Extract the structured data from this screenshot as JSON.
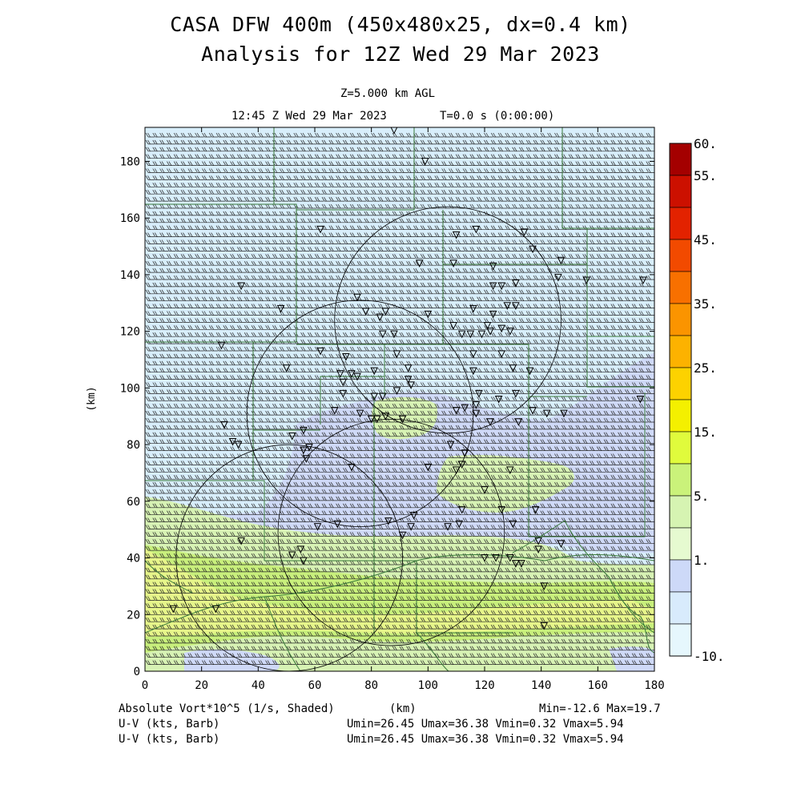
{
  "header": {
    "title": "CASA DFW 400m (450x480x25, dx=0.4 km)",
    "analysis": "Analysis for 12Z Wed 29 Mar 2023",
    "level": "Z=5.000 km AGL",
    "valid_time": "12:45 Z Wed 29 Mar 2023",
    "run_time": "T=0.0 s (0:00:00)"
  },
  "footer": {
    "field_label": "Absolute Vort*10^5 (1/s, Shaded)",
    "xunits": "(km)",
    "minmax": "Min=-12.6 Max=19.7",
    "barb1_label": "U-V (kts, Barb)",
    "barb1_stats": "Umin=26.45 Umax=36.38 Vmin=0.32 Vmax=5.94",
    "barb2_label": "U-V (kts, Barb)",
    "barb2_stats": "Umin=26.45 Umax=36.38 Vmin=0.32 Vmax=5.94"
  },
  "colors": {
    "frame": "#000000",
    "county_lines": "#3a7a3a",
    "barbs": "#222222"
  },
  "chart_data": {
    "type": "heatmap",
    "xlabel": "(km)",
    "ylabel": "(km)",
    "xlim": [
      0,
      180
    ],
    "ylim": [
      0,
      192
    ],
    "xticks": [
      "0",
      "20",
      "40",
      "60",
      "80",
      "100",
      "120",
      "140",
      "160",
      "180"
    ],
    "yticks": [
      "0",
      "20",
      "40",
      "60",
      "80",
      "100",
      "120",
      "140",
      "160",
      "180"
    ],
    "colorbar": {
      "labels": [
        "60.",
        "55.",
        "45.",
        "35.",
        "25.",
        "15.",
        "5.",
        "1.",
        "-10."
      ],
      "colors": [
        "#a40000",
        "#cc1000",
        "#e32200",
        "#f24a00",
        "#f87000",
        "#fb9400",
        "#fdb200",
        "#fdd200",
        "#f4f000",
        "#e0fb3c",
        "#caf27a",
        "#d6f4b2",
        "#e6fad0",
        "#cdd9f8",
        "#d8ebfc",
        "#e6f7fd"
      ]
    },
    "shading_regions": [
      {
        "level": "-10 to 1",
        "color": "#d8eefb"
      },
      {
        "level": "1 to 5",
        "color": "#cfd9f7"
      },
      {
        "level": "5 to 10",
        "color": "#d7f2b4"
      },
      {
        "level": "10 to 15",
        "color": "#c8ef7c"
      },
      {
        "level": "15 to 20",
        "color": "#e6f58a"
      }
    ],
    "wind": {
      "u_kts": [
        26.45,
        36.38
      ],
      "v_kts": [
        0.32,
        5.94
      ],
      "direction": "westerly"
    },
    "range_rings": [
      {
        "center_km": [
          51,
          40
        ],
        "radius_km": 40
      },
      {
        "center_km": [
          87,
          49
        ],
        "radius_km": 40
      },
      {
        "center_km": [
          76,
          91
        ],
        "radius_km": 40
      },
      {
        "center_km": [
          107,
          124
        ],
        "radius_km": 40
      }
    ],
    "station_markers_km": [
      [
        88,
        191
      ],
      [
        99,
        180
      ],
      [
        62,
        156
      ],
      [
        110,
        154
      ],
      [
        117,
        156
      ],
      [
        134,
        155
      ],
      [
        137,
        149
      ],
      [
        97,
        144
      ],
      [
        109,
        144
      ],
      [
        123,
        143
      ],
      [
        147,
        145
      ],
      [
        131,
        137
      ],
      [
        126,
        136
      ],
      [
        123,
        136
      ],
      [
        34,
        136
      ],
      [
        48,
        128
      ],
      [
        75,
        132
      ],
      [
        78,
        127
      ],
      [
        83,
        125
      ],
      [
        85,
        127
      ],
      [
        100,
        126
      ],
      [
        116,
        128
      ],
      [
        123,
        126
      ],
      [
        128,
        129
      ],
      [
        131,
        129
      ],
      [
        121,
        122
      ],
      [
        109,
        122
      ],
      [
        112,
        119
      ],
      [
        115,
        119
      ],
      [
        119,
        119
      ],
      [
        122,
        120
      ],
      [
        126,
        121
      ],
      [
        129,
        120
      ],
      [
        84,
        119
      ],
      [
        88,
        119
      ],
      [
        27,
        115
      ],
      [
        62,
        113
      ],
      [
        71,
        111
      ],
      [
        89,
        112
      ],
      [
        116,
        112
      ],
      [
        126,
        112
      ],
      [
        50,
        107
      ],
      [
        69,
        105
      ],
      [
        73,
        105
      ],
      [
        75,
        104
      ],
      [
        81,
        106
      ],
      [
        93,
        107
      ],
      [
        116,
        106
      ],
      [
        130,
        107
      ],
      [
        136,
        106
      ],
      [
        70,
        102
      ],
      [
        93,
        103
      ],
      [
        94,
        101
      ],
      [
        89,
        99
      ],
      [
        81,
        97
      ],
      [
        70,
        98
      ],
      [
        84,
        97
      ],
      [
        118,
        98
      ],
      [
        117,
        94
      ],
      [
        125,
        96
      ],
      [
        131,
        98
      ],
      [
        113,
        93
      ],
      [
        117,
        91
      ],
      [
        142,
        91
      ],
      [
        148,
        91
      ],
      [
        28,
        87
      ],
      [
        67,
        92
      ],
      [
        76,
        91
      ],
      [
        80,
        89
      ],
      [
        82,
        89
      ],
      [
        85,
        90
      ],
      [
        91,
        89
      ],
      [
        110,
        92
      ],
      [
        122,
        88
      ],
      [
        132,
        88
      ],
      [
        137,
        92
      ],
      [
        56,
        85
      ],
      [
        52,
        83
      ],
      [
        31,
        81
      ],
      [
        33,
        80
      ],
      [
        58,
        79
      ],
      [
        56,
        78
      ],
      [
        57,
        75
      ],
      [
        73,
        72
      ],
      [
        100,
        72
      ],
      [
        110,
        71
      ],
      [
        129,
        71
      ],
      [
        175,
        96
      ],
      [
        108,
        80
      ],
      [
        113,
        77
      ],
      [
        112,
        73
      ],
      [
        120,
        64
      ],
      [
        112,
        57
      ],
      [
        126,
        57
      ],
      [
        138,
        57
      ],
      [
        111,
        52
      ],
      [
        107,
        51
      ],
      [
        86,
        53
      ],
      [
        95,
        55
      ],
      [
        94,
        51
      ],
      [
        91,
        48
      ],
      [
        130,
        52
      ],
      [
        68,
        52
      ],
      [
        61,
        51
      ],
      [
        52,
        41
      ],
      [
        56,
        39
      ],
      [
        139,
        46
      ],
      [
        139,
        43
      ],
      [
        147,
        45
      ],
      [
        131,
        38
      ],
      [
        141,
        30
      ],
      [
        124,
        40
      ],
      [
        120,
        40
      ],
      [
        129,
        40
      ],
      [
        133,
        38
      ],
      [
        176,
        138
      ],
      [
        156,
        138
      ],
      [
        146,
        139
      ],
      [
        10,
        22
      ],
      [
        25,
        22
      ],
      [
        34,
        46
      ],
      [
        55,
        43
      ],
      [
        141,
        16
      ]
    ]
  }
}
